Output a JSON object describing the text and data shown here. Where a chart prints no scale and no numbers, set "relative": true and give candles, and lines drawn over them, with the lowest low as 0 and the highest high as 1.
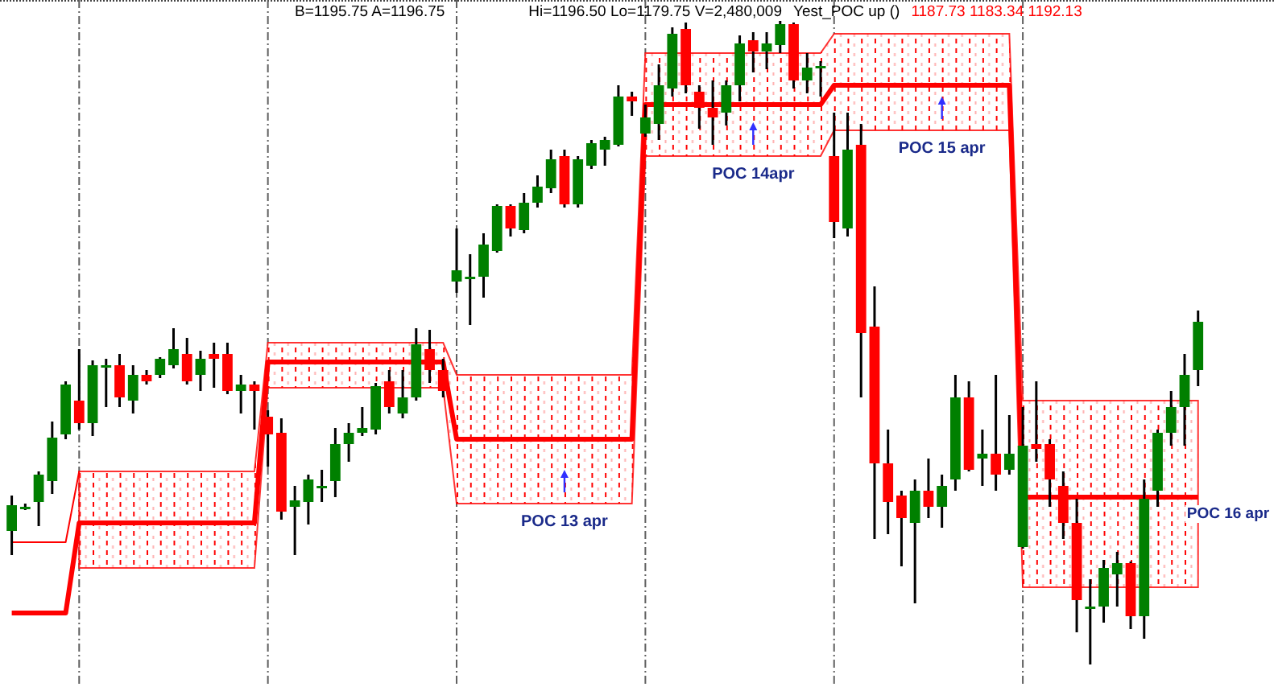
{
  "chart_data": {
    "type": "candlestick",
    "relative": true,
    "tick_labels": false,
    "grid": "x",
    "categories": [
      null,
      null,
      null,
      null,
      null,
      null,
      null,
      null,
      null,
      null,
      null,
      null,
      null,
      null,
      null,
      null,
      null,
      null,
      null,
      null,
      null,
      null,
      null,
      null,
      null,
      null,
      null,
      null,
      null,
      null,
      null,
      null,
      null,
      null,
      null,
      null,
      null,
      null,
      null,
      null,
      null,
      null,
      null,
      null,
      null,
      null,
      null,
      null,
      null,
      null,
      null,
      null,
      null,
      null,
      null,
      null,
      null,
      null,
      null,
      null,
      null,
      null,
      null,
      null,
      null,
      null,
      null,
      null,
      null,
      null,
      null,
      null,
      null,
      null,
      null,
      null,
      null,
      null,
      null,
      null,
      null,
      null,
      null,
      null,
      null,
      null,
      null,
      null,
      null
    ],
    "ohlc": [
      [
        0.2075,
        0.2625,
        0.17,
        0.2475
      ],
      [
        0.245,
        0.25,
        0.24,
        0.245
      ],
      [
        0.2525,
        0.3,
        0.215,
        0.295
      ],
      [
        0.285,
        0.3775,
        0.265,
        0.3525
      ],
      [
        0.3575,
        0.44,
        0.35,
        0.435
      ],
      [
        0.41,
        0.49,
        0.365,
        0.375
      ],
      [
        0.375,
        0.4725,
        0.355,
        0.465
      ],
      [
        0.465,
        0.475,
        0.4,
        0.465
      ],
      [
        0.465,
        0.4825,
        0.4,
        0.415
      ],
      [
        0.41,
        0.465,
        0.39,
        0.45
      ],
      [
        0.45,
        0.4575,
        0.435,
        0.44
      ],
      [
        0.45,
        0.4775,
        0.445,
        0.475
      ],
      [
        0.465,
        0.5225,
        0.46,
        0.49
      ],
      [
        0.4825,
        0.5075,
        0.435,
        0.44
      ],
      [
        0.45,
        0.4875,
        0.425,
        0.475
      ],
      [
        0.4825,
        0.5,
        0.43,
        0.475
      ],
      [
        0.4825,
        0.5,
        0.42,
        0.425
      ],
      [
        0.425,
        0.45,
        0.39,
        0.435
      ],
      [
        0.435,
        0.44,
        0.365,
        0.425
      ],
      [
        0.385,
        0.395,
        0.3075,
        0.3575
      ],
      [
        0.36,
        0.3825,
        0.225,
        0.2375
      ],
      [
        0.245,
        0.2775,
        0.17,
        0.255
      ],
      [
        0.2525,
        0.295,
        0.2175,
        0.2875
      ],
      [
        0.2775,
        0.3025,
        0.2525,
        0.2775
      ],
      [
        0.285,
        0.3675,
        0.26,
        0.3425
      ],
      [
        0.3425,
        0.375,
        0.315,
        0.36
      ],
      [
        0.36,
        0.4,
        0.355,
        0.3675
      ],
      [
        0.365,
        0.4375,
        0.3575,
        0.4325
      ],
      [
        0.44,
        0.4575,
        0.39,
        0.4
      ],
      [
        0.39,
        0.4575,
        0.3825,
        0.415
      ],
      [
        0.415,
        0.5225,
        0.41,
        0.4975
      ],
      [
        0.49,
        0.52,
        0.4375,
        0.4575
      ],
      [
        0.4575,
        0.475,
        0.415,
        0.425
      ],
      [
        0.595,
        0.6775,
        0.5775,
        0.6125
      ],
      [
        0.6025,
        0.6375,
        0.5275,
        0.6025
      ],
      [
        0.6025,
        0.67,
        0.57,
        0.6525
      ],
      [
        0.6425,
        0.715,
        0.64,
        0.7125
      ],
      [
        0.7125,
        0.715,
        0.665,
        0.6775
      ],
      [
        0.675,
        0.7325,
        0.67,
        0.7175
      ],
      [
        0.7175,
        0.76,
        0.71,
        0.7425
      ],
      [
        0.74,
        0.8,
        0.7325,
        0.785
      ],
      [
        0.79,
        0.8,
        0.71,
        0.715
      ],
      [
        0.715,
        0.79,
        0.71,
        0.785
      ],
      [
        0.775,
        0.815,
        0.77,
        0.81
      ],
      [
        0.8,
        0.82,
        0.775,
        0.815
      ],
      [
        0.8075,
        0.9,
        0.805,
        0.8825
      ],
      [
        0.8825,
        0.89,
        0.8525,
        0.875
      ],
      [
        0.825,
        0.87,
        0.82,
        0.85
      ],
      [
        0.84,
        0.9325,
        0.815,
        0.9
      ],
      [
        0.895,
        0.99,
        0.8825,
        0.98
      ],
      [
        0.9875,
        0.9975,
        0.8875,
        0.9
      ],
      [
        0.89,
        0.9,
        0.8325,
        0.865
      ],
      [
        0.865,
        0.9075,
        0.8075,
        0.85
      ],
      [
        0.8575,
        0.9075,
        0.8375,
        0.9
      ],
      [
        0.9,
        0.9775,
        0.875,
        0.965
      ],
      [
        0.97,
        0.9825,
        0.92,
        0.9525
      ],
      [
        0.9525,
        0.9825,
        0.925,
        0.965
      ],
      [
        0.9625,
        1,
        0.95,
        0.995
      ],
      [
        0.995,
        0.9975,
        0.895,
        0.9075
      ],
      [
        0.9075,
        0.95,
        0.8875,
        0.9275
      ],
      [
        0.93,
        0.9375,
        0.8825,
        0.93
      ],
      [
        0.79,
        0.8575,
        0.6625,
        0.6875
      ],
      [
        0.6775,
        0.8575,
        0.665,
        0.8
      ],
      [
        0.8075,
        0.84,
        0.415,
        0.515
      ],
      [
        0.525,
        0.5875,
        0.195,
        0.3125
      ],
      [
        0.3125,
        0.365,
        0.2025,
        0.2525
      ],
      [
        0.2625,
        0.27,
        0.1525,
        0.2275
      ],
      [
        0.22,
        0.2875,
        0.095,
        0.27
      ],
      [
        0.27,
        0.32,
        0.2275,
        0.245
      ],
      [
        0.245,
        0.295,
        0.2125,
        0.2775
      ],
      [
        0.2875,
        0.45,
        0.27,
        0.415
      ],
      [
        0.415,
        0.44,
        0.3,
        0.3025
      ],
      [
        0.32,
        0.365,
        0.2775,
        0.3275
      ],
      [
        0.3275,
        0.45,
        0.27,
        0.295
      ],
      [
        0.3025,
        0.3875,
        0.295,
        0.3275
      ],
      [
        0.1825,
        0.4,
        0.18,
        0.34
      ],
      [
        0.3425,
        0.44,
        0.315,
        0.335
      ],
      [
        0.3425,
        0.35,
        0.245,
        0.2875
      ],
      [
        0.2775,
        0.3,
        0.195,
        0.22
      ],
      [
        0.22,
        0.2575,
        0.05,
        0.1
      ],
      [
        0.09,
        0.1325,
        0,
        0.09
      ],
      [
        0.09,
        0.1625,
        0.065,
        0.15
      ],
      [
        0.14,
        0.175,
        0.09,
        0.1575
      ],
      [
        0.1575,
        0.16,
        0.055,
        0.075
      ],
      [
        0.075,
        0.2875,
        0.04,
        0.2575
      ],
      [
        0.27,
        0.365,
        0.245,
        0.36
      ],
      [
        0.36,
        0.425,
        0.34,
        0.4
      ],
      [
        0.4,
        0.4825,
        0.34,
        0.45
      ],
      [
        0.4575,
        0.55,
        0.4325,
        0.5325
      ]
    ],
    "series": [
      {
        "type": "line",
        "color": "#ff0000",
        "values": [
          0.08,
          0.08,
          0.08,
          0.08,
          0.08,
          0.22,
          0.22,
          0.22,
          0.22,
          0.22,
          0.22,
          0.22,
          0.22,
          0.22,
          0.22,
          0.22,
          0.22,
          0.22,
          0.22,
          0.47,
          0.47,
          0.47,
          0.47,
          0.47,
          0.47,
          0.47,
          0.47,
          0.47,
          0.47,
          0.47,
          0.47,
          0.47,
          0.47,
          0.35,
          0.35,
          0.35,
          0.35,
          0.35,
          0.35,
          0.35,
          0.35,
          0.35,
          0.35,
          0.35,
          0.35,
          0.35,
          0.35,
          0.87,
          0.87,
          0.87,
          0.87,
          0.87,
          0.87,
          0.87,
          0.87,
          0.87,
          0.87,
          0.87,
          0.87,
          0.87,
          0.87,
          0.9,
          0.9,
          0.9,
          0.9,
          0.9,
          0.9,
          0.9,
          0.9,
          0.9,
          0.9,
          0.9,
          0.9,
          0.9,
          0.9,
          0.26,
          0.26,
          0.26,
          0.26,
          0.26,
          0.26,
          0.26,
          0.26,
          0.26,
          0.26,
          0.26,
          0.26,
          0.26,
          0.26
        ],
        "lower": [
          null,
          null,
          null,
          null,
          null,
          0.15,
          0.15,
          0.15,
          0.15,
          0.15,
          0.15,
          0.15,
          0.15,
          0.15,
          0.15,
          0.15,
          0.15,
          0.15,
          0.15,
          0.43,
          0.43,
          0.43,
          0.43,
          0.43,
          0.43,
          0.43,
          0.43,
          0.43,
          0.43,
          0.43,
          0.43,
          0.43,
          0.43,
          0.25,
          0.25,
          0.25,
          0.25,
          0.25,
          0.25,
          0.25,
          0.25,
          0.25,
          0.25,
          0.25,
          0.25,
          0.25,
          0.25,
          0.79,
          0.79,
          0.79,
          0.79,
          0.79,
          0.79,
          0.79,
          0.79,
          0.79,
          0.79,
          0.79,
          0.79,
          0.79,
          0.79,
          0.83,
          0.83,
          0.83,
          0.83,
          0.83,
          0.83,
          0.83,
          0.83,
          0.83,
          0.83,
          0.83,
          0.83,
          0.83,
          0.83,
          0.12,
          0.12,
          0.12,
          0.12,
          0.12,
          0.12,
          0.12,
          0.12,
          0.12,
          0.12,
          0.12,
          0.12,
          0.12,
          0.12
        ],
        "upper": [
          null,
          null,
          null,
          null,
          null,
          0.3,
          0.3,
          0.3,
          0.3,
          0.3,
          0.3,
          0.3,
          0.3,
          0.3,
          0.3,
          0.3,
          0.3,
          0.3,
          0.3,
          0.5,
          0.5,
          0.5,
          0.5,
          0.5,
          0.5,
          0.5,
          0.5,
          0.5,
          0.5,
          0.5,
          0.5,
          0.5,
          0.5,
          0.45,
          0.45,
          0.45,
          0.45,
          0.45,
          0.45,
          0.45,
          0.45,
          0.45,
          0.45,
          0.45,
          0.45,
          0.45,
          0.45,
          0.95,
          0.95,
          0.95,
          0.95,
          0.95,
          0.95,
          0.95,
          0.95,
          0.95,
          0.95,
          0.95,
          0.95,
          0.95,
          0.95,
          0.98,
          0.98,
          0.98,
          0.98,
          0.98,
          0.98,
          0.98,
          0.98,
          0.98,
          0.98,
          0.98,
          0.98,
          0.98,
          0.98,
          0.41,
          0.41,
          0.41,
          0.41,
          0.41,
          0.41,
          0.41,
          0.41,
          0.41,
          0.41,
          0.41,
          0.41,
          0.41,
          0.41
        ]
      },
      {
        "type": "line",
        "color": "#ff0000",
        "values": [
          0.19,
          0.19,
          0.19,
          0.19,
          0.19,
          0.3,
          null,
          null,
          null,
          null,
          null,
          null,
          null,
          null,
          null,
          null,
          null,
          null,
          null,
          null,
          null,
          null,
          null,
          null,
          null,
          null,
          null,
          null,
          null,
          null,
          null,
          null,
          null,
          null,
          null,
          null,
          null,
          null,
          null,
          null,
          null,
          null,
          null,
          null,
          null,
          null,
          null,
          null,
          null,
          null,
          null,
          null,
          null,
          null,
          null,
          null,
          null,
          null,
          null,
          null,
          null,
          null,
          null,
          null,
          null,
          null,
          null,
          null,
          null,
          null,
          null,
          null,
          null,
          null,
          null,
          null,
          null,
          null,
          null,
          null,
          null,
          null,
          null,
          null,
          null,
          null,
          null,
          null,
          null
        ]
      }
    ],
    "annotations": [
      "B=1195.75 A=1196.75",
      "Hi=1196.50 Lo=1179.75 V=2,480,009",
      "Yest_POC up ()",
      "1187.73 1183.34 1192.13",
      "POC 16 apr",
      {
        "text": "POC 13 apr",
        "y": 0.25
      },
      {
        "text": "POC 14apr",
        "y": 0.79
      },
      {
        "text": "POC 15 apr",
        "y": 0.83
      }
    ]
  }
}
